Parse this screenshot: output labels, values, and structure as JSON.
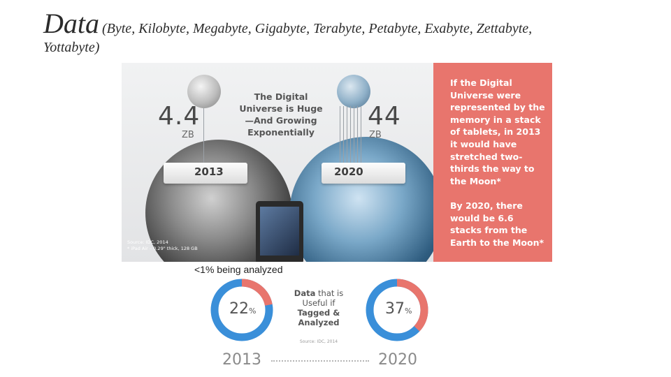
{
  "title": {
    "main": "Data",
    "sub_line1": "(Byte, Kilobyte, Megabyte, Gigabyte, Terabyte, Petabyte, Exabyte, Zettabyte,",
    "sub_line2": "Yottabyte)"
  },
  "infographic": {
    "headline": [
      "The Digital",
      "Universe is Huge",
      "—And Growing",
      "Exponentially"
    ],
    "left": {
      "value": "4.4",
      "unit": "ZB",
      "year": "2013"
    },
    "right": {
      "value": "44",
      "unit": "ZB",
      "year": "2020"
    },
    "red_box_para1": "If the Digital Universe were represented by the memory in a stack of tablets, in 2013 it would have stretched two-thirds the way to the Moon*",
    "red_box_para2": "By 2020, there would be 6.6 stacks from the Earth to the Moon*",
    "source_line1": "Source: IDC, 2014",
    "source_line2": "* iPad Air – 0.29\" thick, 128 GB",
    "colors": {
      "red_box": "#e8756d",
      "earth_2013": "#3c3c3c",
      "earth_2020": "#2f5d80"
    },
    "icons": [
      "moon-2013",
      "moon-2020",
      "earth-2013",
      "earth-2020",
      "tablet"
    ]
  },
  "caption": "<1% being analyzed",
  "useful": {
    "line1": "Data",
    "line1b": " that is",
    "line2": "Useful if",
    "line3": "Tagged &",
    "line4": "Analyzed",
    "source": "Source: IDC, 2014"
  },
  "donuts": [
    {
      "year": "2013",
      "percent_text": "22",
      "sign": "%",
      "value": 22
    },
    {
      "year": "2020",
      "percent_text": "37",
      "sign": "%",
      "value": 37
    }
  ],
  "donut_colors": {
    "filled": "#e8756d",
    "rest": "#3a8fd9"
  }
}
